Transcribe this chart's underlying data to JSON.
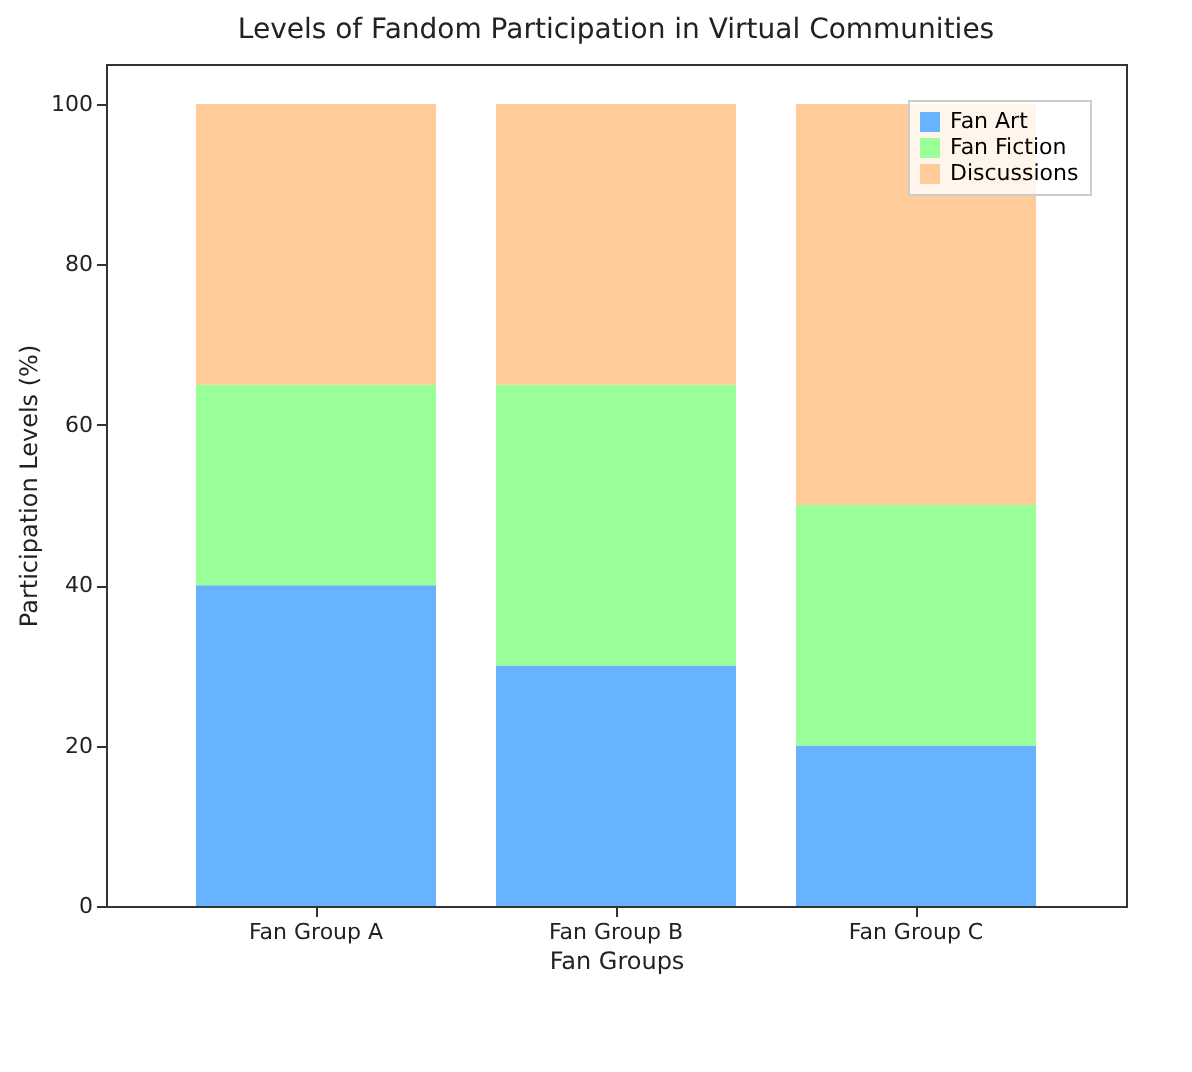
{
  "chart_data": {
    "type": "bar",
    "title": "Levels of Fandom Participation in Virtual Communities",
    "xlabel": "Fan Groups",
    "ylabel": "Participation Levels (%)",
    "categories": [
      "Fan Group A",
      "Fan Group B",
      "Fan Group C"
    ],
    "stacked": true,
    "ylim": [
      0,
      105
    ],
    "yticks": [
      0,
      20,
      40,
      60,
      80,
      100
    ],
    "grid": false,
    "legend": "top right",
    "series": [
      {
        "name": "Fan Art",
        "color": "#66b3ff",
        "values": [
          40,
          30,
          20
        ]
      },
      {
        "name": "Fan Fiction",
        "color": "#99ff99",
        "values": [
          25,
          35,
          30
        ]
      },
      {
        "name": "Discussions",
        "color": "#ffcc99",
        "values": [
          35,
          35,
          50
        ]
      }
    ]
  }
}
